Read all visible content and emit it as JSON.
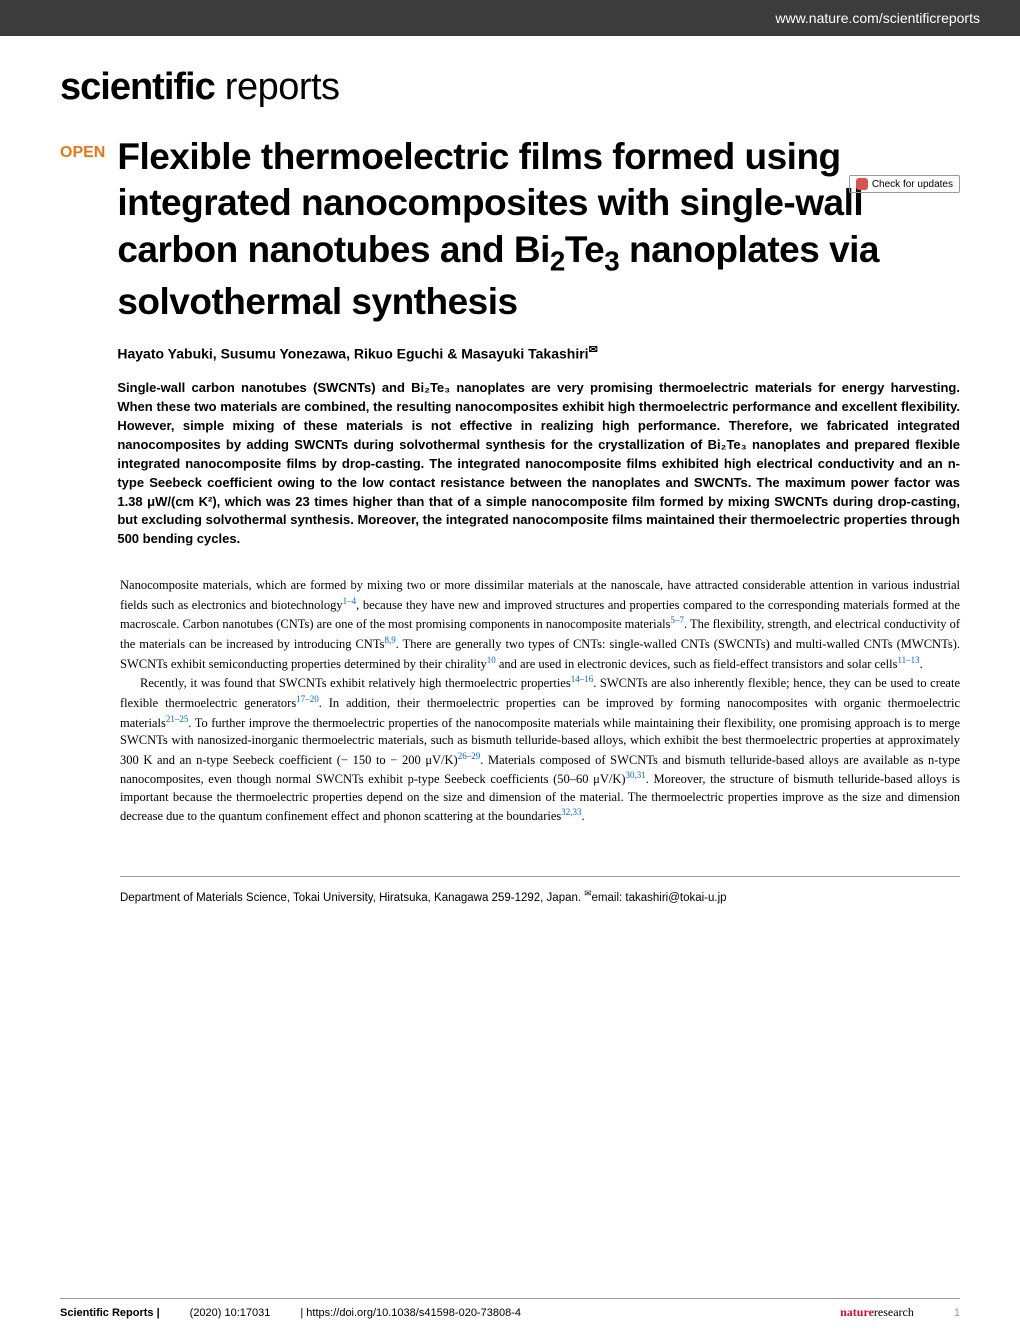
{
  "header": {
    "url": "www.nature.com/scientificreports",
    "brand_bold": "scientific",
    "brand_light": " reports",
    "check_updates": "Check for updates"
  },
  "article": {
    "open_label": "OPEN",
    "title": "Flexible thermoelectric films formed using integrated nanocomposites with single-wall carbon nanotubes and Bi",
    "title_sub1": "2",
    "title_mid": "Te",
    "title_sub2": "3",
    "title_end": " nanoplates via solvothermal synthesis",
    "authors_text": "Hayato Yabuki, Susumu Yonezawa, Rikuo Eguchi & Masayuki Takashiri",
    "corresponding_mark": "✉",
    "abstract": "Single-wall carbon nanotubes (SWCNTs) and Bi₂Te₃ nanoplates are very promising thermoelectric materials for energy harvesting. When these two materials are combined, the resulting nanocomposites exhibit high thermoelectric performance and excellent flexibility. However, simple mixing of these materials is not effective in realizing high performance. Therefore, we fabricated integrated nanocomposites by adding SWCNTs during solvothermal synthesis for the crystallization of Bi₂Te₃ nanoplates and prepared flexible integrated nanocomposite films by drop-casting. The integrated nanocomposite films exhibited high electrical conductivity and an n-type Seebeck coefficient owing to the low contact resistance between the nanoplates and SWCNTs. The maximum power factor was 1.38 μW/(cm K²), which was 23 times higher than that of a simple nanocomposite film formed by mixing SWCNTs during drop-casting, but excluding solvothermal synthesis. Moreover, the integrated nanocomposite films maintained their thermoelectric properties through 500 bending cycles."
  },
  "body": {
    "para1_a": "Nanocomposite materials, which are formed by mixing two or more dissimilar materials at the nanoscale, have attracted considerable attention in various industrial fields such as electronics and biotechnology",
    "ref1": "1–4",
    "para1_b": ", because they have new and improved structures and properties compared to the corresponding materials formed at the macroscale. Carbon nanotubes (CNTs) are one of the most promising components in nanocomposite materials",
    "ref2": "5–7",
    "para1_c": ". The flexibility, strength, and electrical conductivity of the materials can be increased by introducing CNTs",
    "ref3": "8,9",
    "para1_d": ". There are generally two types of CNTs: single-walled CNTs (SWCNTs) and multi-walled CNTs (MWCNTs). SWCNTs exhibit semiconducting properties determined by their chirality",
    "ref4": "10",
    "para1_e": " and are used in electronic devices, such as field-effect transistors and solar cells",
    "ref5": "11–13",
    "para1_f": ".",
    "para2_a": "Recently, it was found that SWCNTs exhibit relatively high thermoelectric properties",
    "ref6": "14–16",
    "para2_b": ". SWCNTs are also inherently flexible; hence, they can be used to create flexible thermoelectric generators",
    "ref7": "17–20",
    "para2_c": ". In addition, their thermoelectric properties can be improved by forming nanocomposites with organic thermoelectric materials",
    "ref8": "21–25",
    "para2_d": ". To further improve the thermoelectric properties of the nanocomposite materials while maintaining their flexibility, one promising approach is to merge SWCNTs with nanosized-inorganic thermoelectric materials, such as bismuth telluride-based alloys, which exhibit the best thermoelectric properties at approximately 300 K and an n-type Seebeck coefficient (− 150 to − 200 μV/K)",
    "ref9": "26–29",
    "para2_e": ". Materials composed of SWCNTs and bismuth telluride-based alloys are available as n-type nanocomposites, even though normal SWCNTs exhibit p-type Seebeck coefficients (50–60 μV/K)",
    "ref10": "30,31",
    "para2_f": ". Moreover, the structure of bismuth telluride-based alloys is important because the thermoelectric properties depend on the size and dimension of the material. The thermoelectric properties improve as the size and dimension decrease due to the quantum confinement effect and phonon scattering at the boundaries",
    "ref11": "32,33",
    "para2_g": "."
  },
  "affiliation": {
    "text_a": "Department of Materials Science, Tokai University, Hiratsuka, Kanagawa 259-1292, Japan. ",
    "mark": "✉",
    "text_b": "email: takashiri@tokai-u.jp"
  },
  "footer": {
    "journal": "Scientific Reports |",
    "citation": "(2020) 10:17031",
    "doi": "| https://doi.org/10.1038/s41598-020-73808-4",
    "nature_a": "nature",
    "nature_b": "research",
    "page": "1"
  },
  "colors": {
    "header_bg": "#3c3c3c",
    "open_badge": "#e67817",
    "link": "#0066cc",
    "nature_red": "#c8102e",
    "text": "#000000",
    "page_bg": "#ffffff",
    "border": "#999999",
    "update_icon": "#d9534f"
  },
  "typography": {
    "brand_size": 38,
    "title_size": 37,
    "author_size": 14,
    "abstract_size": 13,
    "body_size": 12.5,
    "footer_size": 11
  }
}
